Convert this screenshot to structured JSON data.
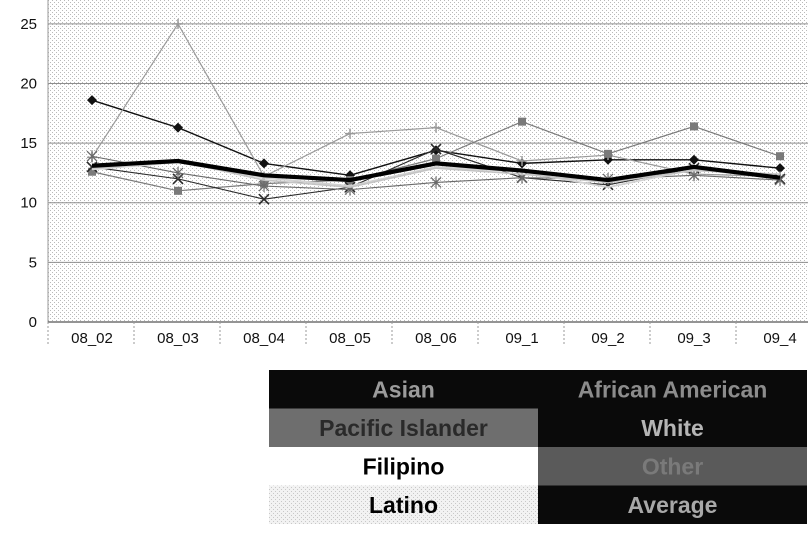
{
  "chart_data": {
    "type": "line",
    "title": "",
    "xlabel": "",
    "ylabel": "",
    "ylim": [
      0,
      27
    ],
    "yticks": [
      0,
      5,
      10,
      15,
      20,
      25
    ],
    "grid": true,
    "legend_position": "bottom-right",
    "categories": [
      "08_02",
      "08_03",
      "08_04",
      "08_05",
      "08_06",
      "09_1",
      "09_2",
      "09_3",
      "09_4"
    ],
    "series": [
      {
        "name": "Asian",
        "values": [
          18.6,
          16.3,
          13.3,
          12.3,
          14.4,
          13.3,
          13.6,
          13.6,
          12.9
        ],
        "color": "#111111",
        "marker": "diamond",
        "width": 1.4
      },
      {
        "name": "African American",
        "values": [
          13.8,
          25.0,
          12.2,
          15.8,
          16.3,
          13.5,
          14.0,
          12.4,
          12.2
        ],
        "color": "#9a9a9a",
        "marker": "plus",
        "width": 1.2
      },
      {
        "name": "Pacific Islander",
        "values": [
          12.6,
          11.0,
          11.6,
          11.9,
          13.7,
          16.8,
          14.1,
          16.4,
          13.9
        ],
        "color": "#7a7a7a",
        "marker": "square",
        "width": 1.2
      },
      {
        "name": "White",
        "values": [
          13.0,
          12.0,
          10.3,
          11.3,
          14.5,
          12.1,
          11.5,
          12.9,
          12.0
        ],
        "color": "#2a2a2a",
        "marker": "star",
        "width": 1.1
      },
      {
        "name": "Other",
        "values": [
          13.9,
          12.5,
          11.4,
          11.1,
          11.7,
          12.1,
          12.0,
          12.3,
          11.9
        ],
        "color": "#6a6a6a",
        "marker": "asterisk",
        "width": 1.1
      },
      {
        "name": "Filipino",
        "values": [
          12.8,
          13.4,
          12.1,
          11.4,
          13.0,
          12.6,
          11.3,
          12.8,
          12.1
        ],
        "color": "#d2d2d2",
        "marker": "none",
        "width": 1.8
      },
      {
        "name": "Latino",
        "values": [
          12.9,
          13.5,
          11.9,
          11.3,
          12.9,
          12.4,
          11.7,
          12.7,
          12.4
        ],
        "color": "#c4c4c4",
        "marker": "none",
        "width": 1.6
      },
      {
        "name": "Average",
        "values": [
          13.1,
          13.5,
          12.3,
          11.9,
          13.3,
          12.7,
          11.9,
          13.0,
          12.1
        ],
        "color": "#000000",
        "marker": "none",
        "width": 4.2
      }
    ],
    "legend": [
      {
        "label": "Asian",
        "bg": "#0a0a0a",
        "fg": "#9b9b9b"
      },
      {
        "label": "African American",
        "bg": "#0a0a0a",
        "fg": "#8c8c8c"
      },
      {
        "label": "Pacific Islander",
        "bg": "#6e6e6e",
        "fg": "#2a2a2a"
      },
      {
        "label": "White",
        "bg": "#0a0a0a",
        "fg": "#b5b5b5"
      },
      {
        "label": "Filipino",
        "bg": "#ffffff",
        "fg": "#000000"
      },
      {
        "label": "Other",
        "bg": "#5a5a5a",
        "fg": "#7a7a7a"
      },
      {
        "label": "Latino",
        "bg": "#ececec",
        "fg": "#000000"
      },
      {
        "label": "Average",
        "bg": "#0a0a0a",
        "fg": "#a8a8a8"
      }
    ]
  }
}
